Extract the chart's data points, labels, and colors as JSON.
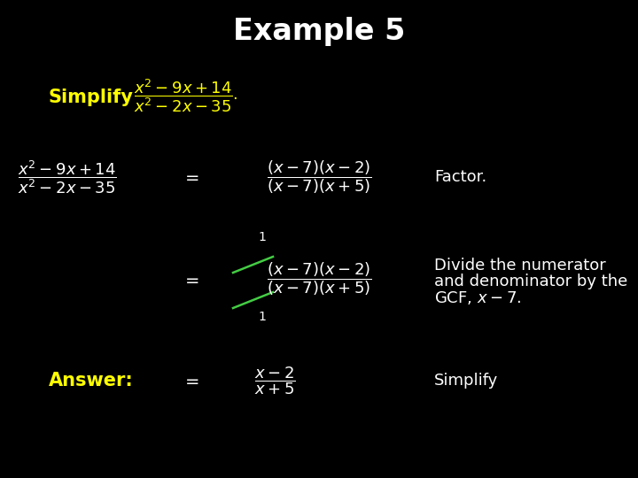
{
  "background_color": "#000000",
  "title": "Example 5",
  "title_color": "#ffffff",
  "title_fontsize": 22,
  "simplify_color": "#ffff00",
  "answer_color": "#ffff00",
  "math_color": "#ffffff",
  "annotation_color": "#ffffff",
  "cancel_color": "#44cc44",
  "factor_note": "Factor.",
  "divide_note_line1": "Divide the numerator",
  "divide_note_line2": "and denominator by the",
  "divide_note_line3": "GCF, $x-7$.",
  "simplify_note": "Simplify"
}
